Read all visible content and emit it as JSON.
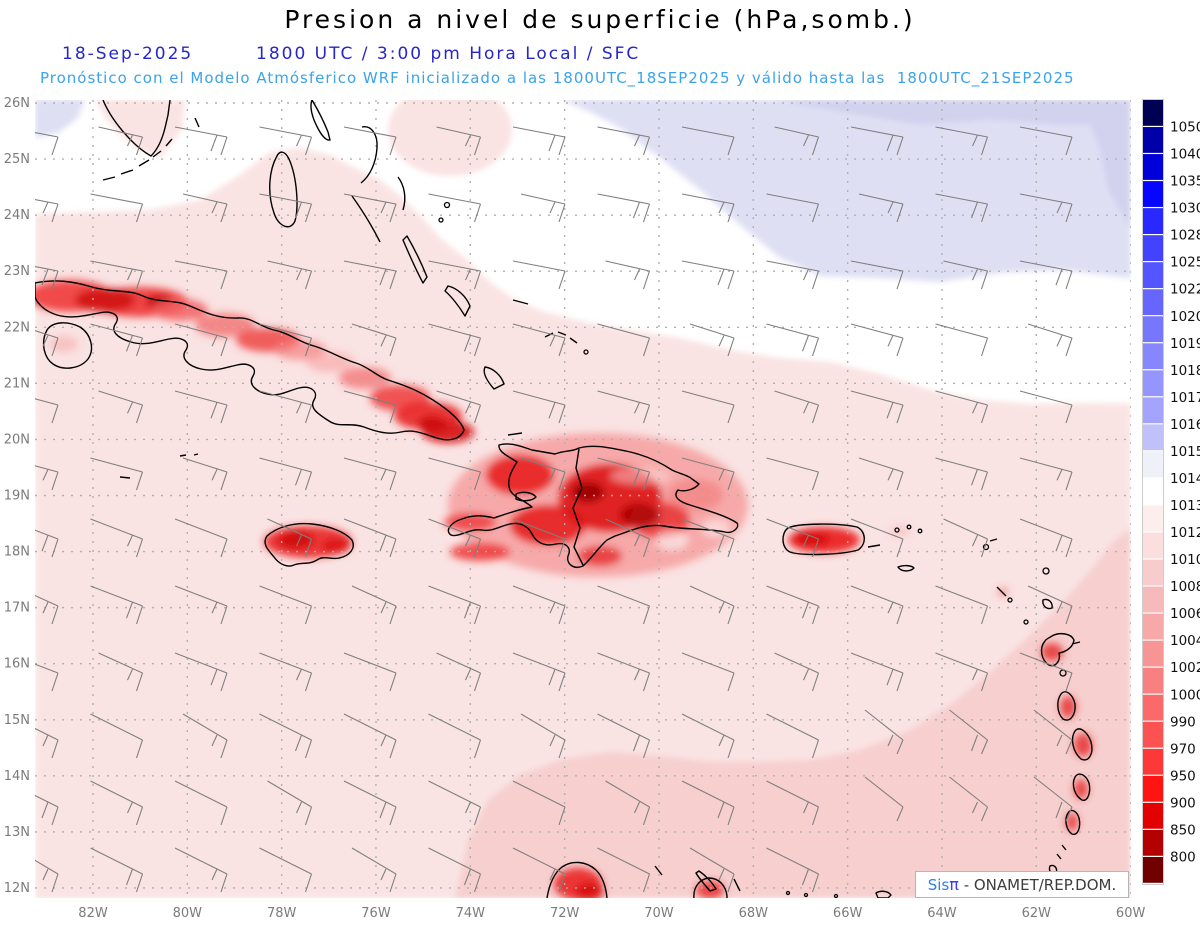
{
  "header": {
    "title": "Presion a nivel de superficie (hPa,somb.)",
    "date": "18-Sep-2025",
    "time_line": "1800 UTC / 3:00 pm Hora Local / SFC",
    "forecast_line": "Pronóstico con el Modelo Atmósferico WRF inicializado a las 1800UTC_18SEP2025 y válido hasta las  1800UTC_21SEP2025"
  },
  "map": {
    "lat_labels": [
      "26N",
      "25N",
      "24N",
      "23N",
      "22N",
      "21N",
      "20N",
      "19N",
      "18N",
      "17N",
      "16N",
      "15N",
      "14N",
      "13N",
      "12N"
    ],
    "lon_labels": [
      "82W",
      "80W",
      "78W",
      "76W",
      "74W",
      "72W",
      "70W",
      "68W",
      "66W",
      "64W",
      "62W",
      "60W"
    ],
    "extent": {
      "lat_min": "12N",
      "lat_max": "26N",
      "lon_west": "82W",
      "lon_east": "60W"
    },
    "field": "surface pressure (hPa, shaded)"
  },
  "colorbar": {
    "ticks": [
      "1050",
      "1040",
      "1035",
      "1030",
      "1028",
      "1025",
      "1022",
      "1020",
      "1019",
      "1018",
      "1017",
      "1016",
      "1015",
      "1014",
      "1013",
      "1012",
      "1010",
      "1008",
      "1006",
      "1004",
      "1002",
      "1000",
      "990",
      "970",
      "950",
      "900",
      "850",
      "800"
    ],
    "colors": [
      "#000052",
      "#0000aa",
      "#0000d8",
      "#0606ff",
      "#2929ff",
      "#4343ff",
      "#5555ff",
      "#6666ff",
      "#7676ff",
      "#8686ff",
      "#9595ff",
      "#a4a4ff",
      "#c0c0fb",
      "#f0f0f8",
      "#ffffff",
      "#fdeeee",
      "#fbdfdf",
      "#f8cccc",
      "#f7baba",
      "#f7a8a8",
      "#f79595",
      "#f98080",
      "#fa6a6a",
      "#fc5252",
      "#fd3838",
      "#ff1414",
      "#e30000",
      "#b40000",
      "#700000"
    ]
  },
  "region_colors": {
    "ocean_pink": "#fae3e3",
    "south_pink": "#f6cccc",
    "high_lavender": "#dfdff4",
    "high_lavender_deep": "#d2d2ef",
    "white_band": "#ffffff",
    "grid": "#b0b0b0",
    "coast": "#000000",
    "barb": "#7f7f7f",
    "axis_text": "#7b7b7b",
    "tick_text": "#111111"
  },
  "attribution": {
    "sis": "Sis",
    "pi": "π",
    "rest": "- ONAMET/REP.DOM."
  }
}
